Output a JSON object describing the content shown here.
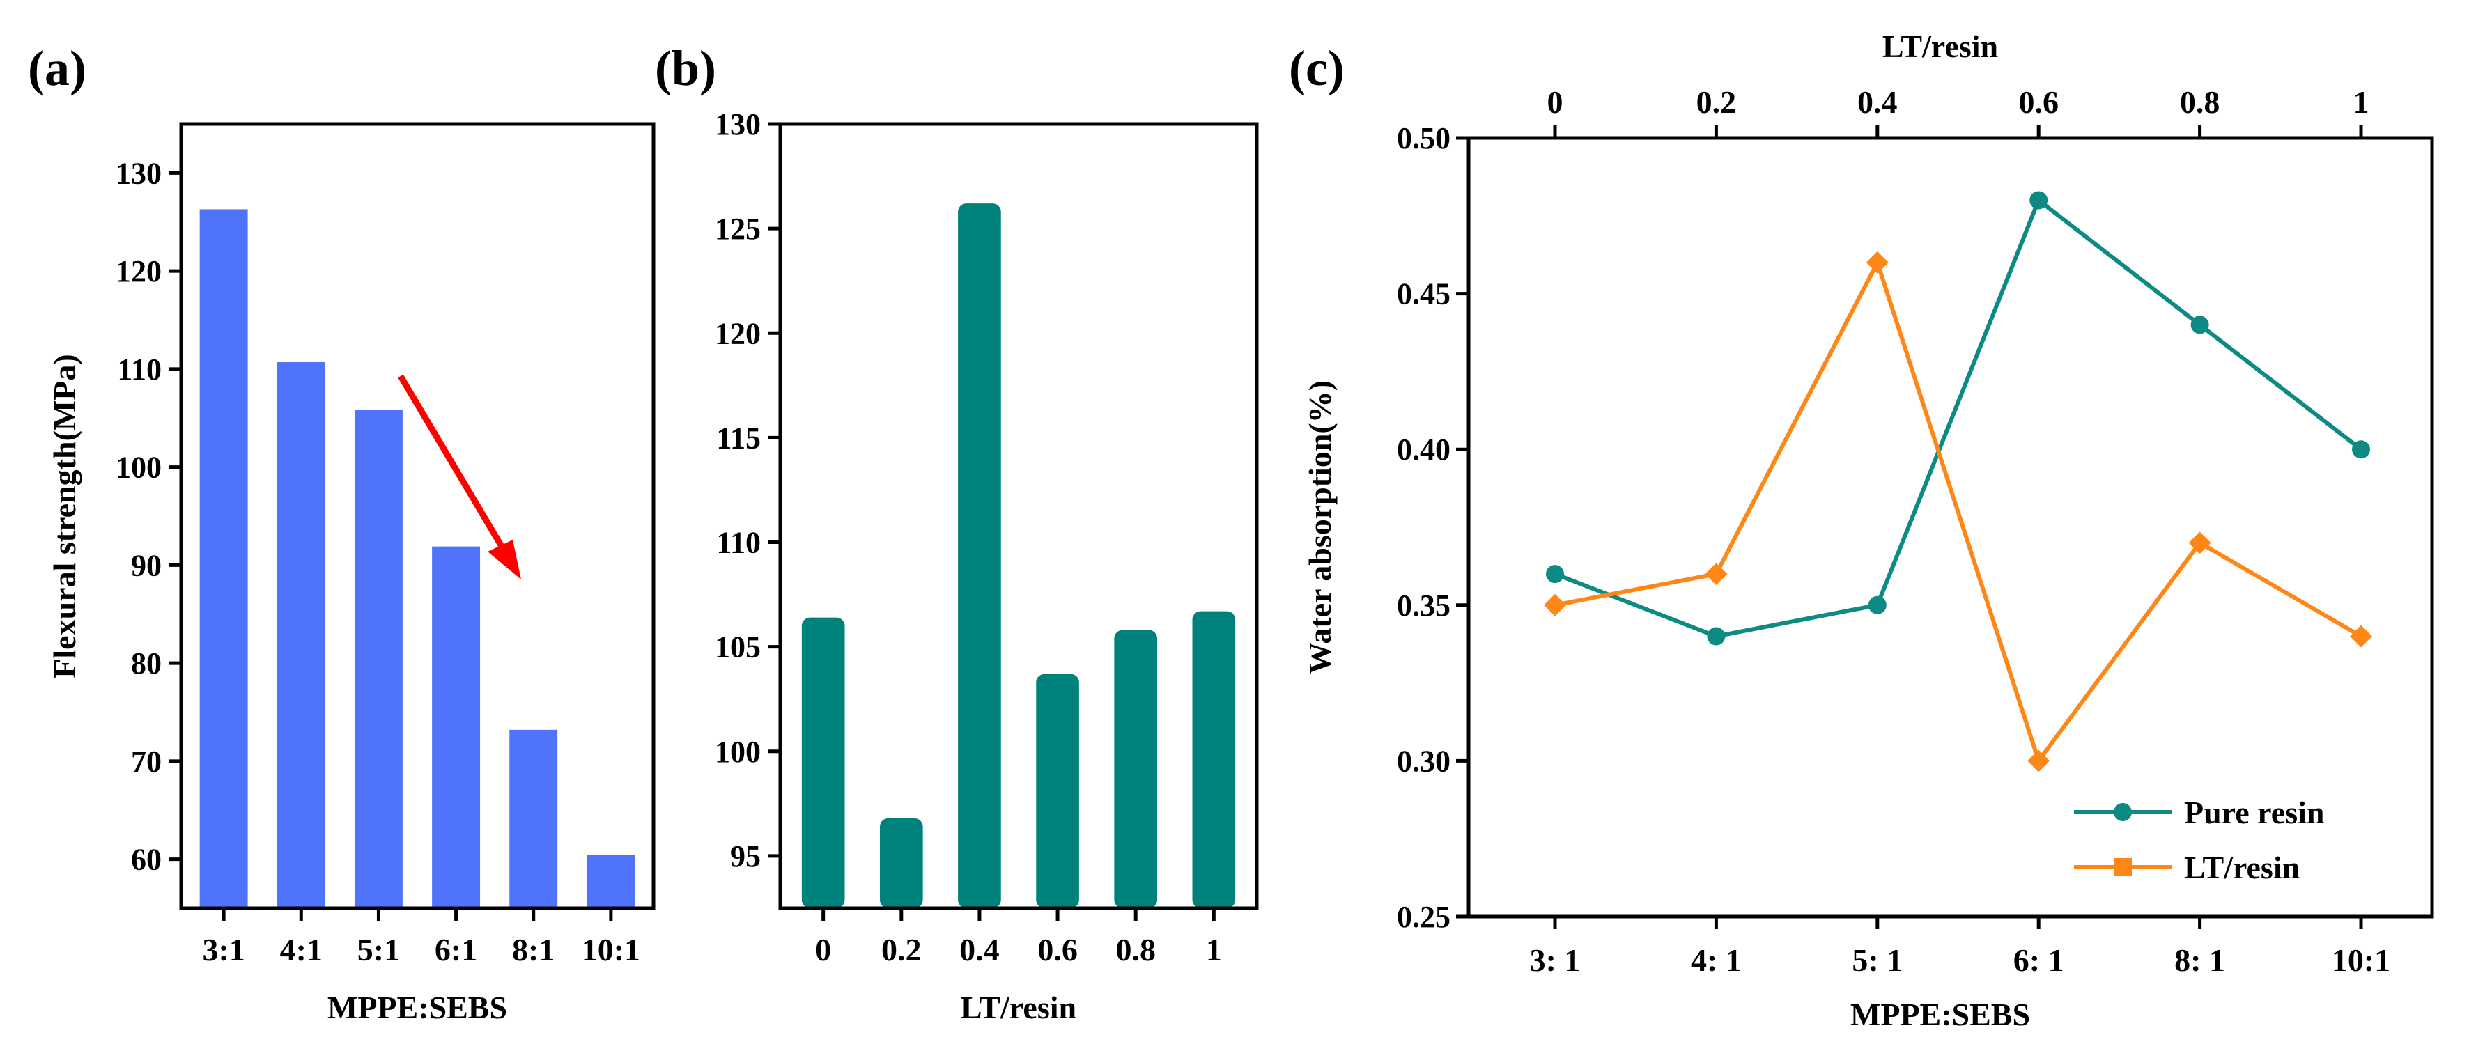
{
  "chart_data": [
    {
      "panel_label": "(a)",
      "type": "bar",
      "categories": [
        "3:1",
        "4:1",
        "5:1",
        "6:1",
        "8:1",
        "10:1"
      ],
      "values": [
        126.3,
        110.7,
        105.8,
        91.9,
        73.2,
        60.4
      ],
      "xlabel": "MPPE:SEBS",
      "ylabel": "Flexural strength(MPa)",
      "ylim": [
        55,
        135
      ],
      "yticks": [
        "60",
        "70",
        "80",
        "90",
        "100",
        "110",
        "120",
        "130"
      ],
      "bar_color": "#4f73fb",
      "annotation": "red downward arrow from 5:1 toward 8:1",
      "annotation_color": "#ff0000",
      "grid": false
    },
    {
      "panel_label": "(b)",
      "type": "bar",
      "categories": [
        "0",
        "0.2",
        "0.4",
        "0.6",
        "0.8",
        "1"
      ],
      "values": [
        106.4,
        96.8,
        126.2,
        103.7,
        105.8,
        106.7
      ],
      "xlabel": "LT/resin",
      "ylabel": "",
      "ylim": [
        92.5,
        130
      ],
      "yticks": [
        "95",
        "100",
        "105",
        "110",
        "115",
        "120",
        "125",
        "130"
      ],
      "bar_color": "#00827c",
      "grid": false
    },
    {
      "panel_label": "(c)",
      "type": "line",
      "categories": [
        "3:  1",
        "4:  1",
        "5:  1",
        "6:  1",
        "8:  1",
        "10:1"
      ],
      "top_categories": [
        "0",
        "0.2",
        "0.4",
        "0.6",
        "0.8",
        "1"
      ],
      "xlabel": "MPPE:SEBS",
      "top_xlabel": "LT/resin",
      "ylabel": "Water absorption(%)",
      "ylim": [
        0.25,
        0.5
      ],
      "yticks": [
        "0.25",
        "0.30",
        "0.35",
        "0.40",
        "0.45",
        "0.50"
      ],
      "series": [
        {
          "name": "Pure resin",
          "values": [
            0.36,
            0.34,
            0.35,
            0.48,
            0.44,
            0.4
          ],
          "color": "#0d8a84",
          "marker": "circle"
        },
        {
          "name": "LT/resin",
          "values": [
            0.35,
            0.36,
            0.46,
            0.3,
            0.37,
            0.34
          ],
          "color": "#ff8717",
          "marker": "diamond",
          "legend_marker": "square"
        }
      ],
      "legend_position": "bottom-right",
      "grid": false
    }
  ]
}
